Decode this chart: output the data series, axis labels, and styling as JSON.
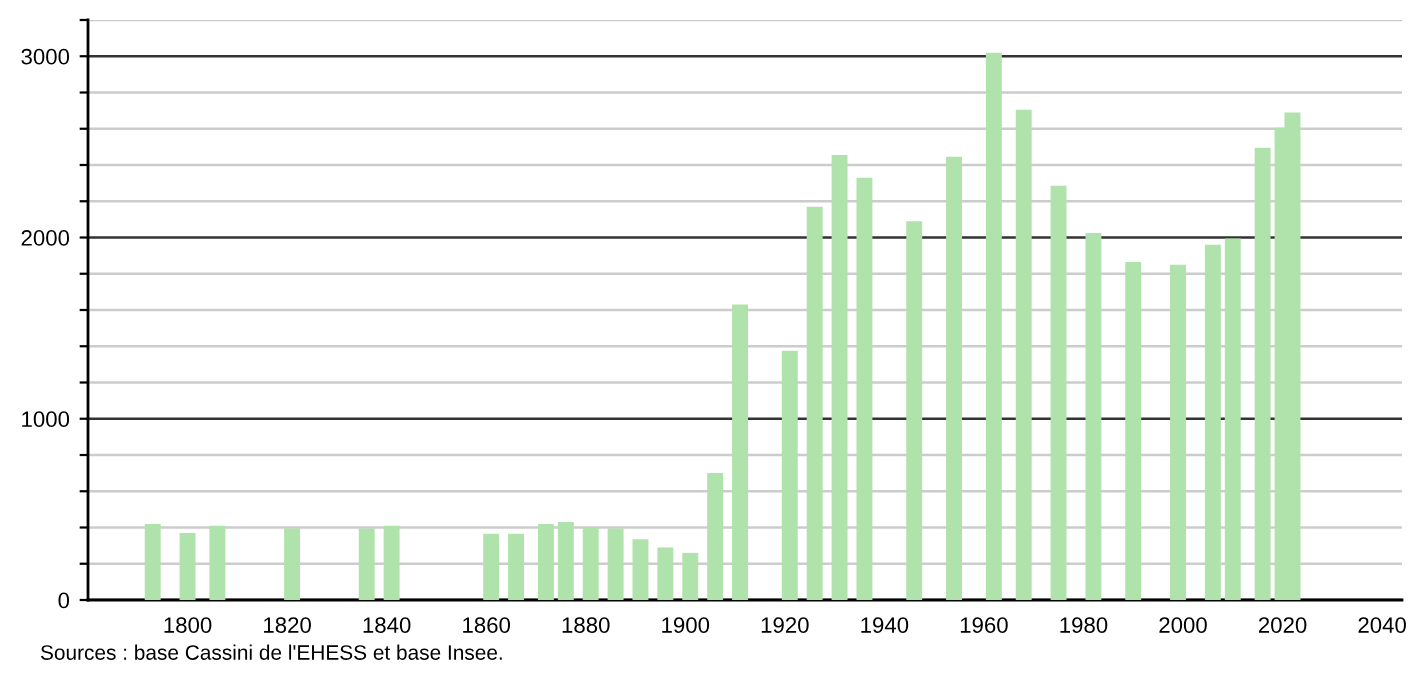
{
  "chart_data": {
    "type": "bar",
    "x": [
      1793,
      1800,
      1806,
      1821,
      1836,
      1841,
      1861,
      1866,
      1872,
      1876,
      1881,
      1886,
      1891,
      1896,
      1901,
      1906,
      1911,
      1921,
      1926,
      1931,
      1936,
      1946,
      1954,
      1962,
      1968,
      1975,
      1982,
      1990,
      1999,
      2006,
      2010,
      2016,
      2020,
      2022
    ],
    "values": [
      420,
      370,
      410,
      395,
      395,
      410,
      365,
      365,
      420,
      430,
      400,
      395,
      335,
      290,
      260,
      700,
      1630,
      1375,
      2170,
      2455,
      2330,
      2090,
      2445,
      3020,
      2705,
      2285,
      2025,
      1865,
      1850,
      1960,
      1995,
      2495,
      2605,
      2690
    ],
    "color": "#b0e2ab",
    "xlim": [
      1780,
      2044
    ],
    "xticks": [
      1800,
      1820,
      1840,
      1860,
      1880,
      1900,
      1920,
      1940,
      1960,
      1980,
      2000,
      2020,
      2040
    ],
    "ylim": [
      0,
      3200
    ],
    "yticks": [
      0,
      {
        "value": 200,
        "label": null
      },
      {
        "value": 400,
        "label": null
      },
      {
        "value": 600,
        "label": null
      },
      {
        "value": 800,
        "label": null
      },
      1000,
      {
        "value": 1200,
        "label": null
      },
      {
        "value": 1400,
        "label": null
      },
      {
        "value": 1600,
        "label": null
      },
      {
        "value": 1800,
        "label": null
      },
      2000,
      {
        "value": 2200,
        "label": null
      },
      {
        "value": 2400,
        "label": null
      },
      {
        "value": 2600,
        "label": null
      },
      {
        "value": 2800,
        "label": null
      },
      3000,
      {
        "value": 3200,
        "label": null
      }
    ],
    "grid": "y",
    "annotations": [
      "Sources : base Cassini de l'EHESS et base Insee."
    ]
  }
}
